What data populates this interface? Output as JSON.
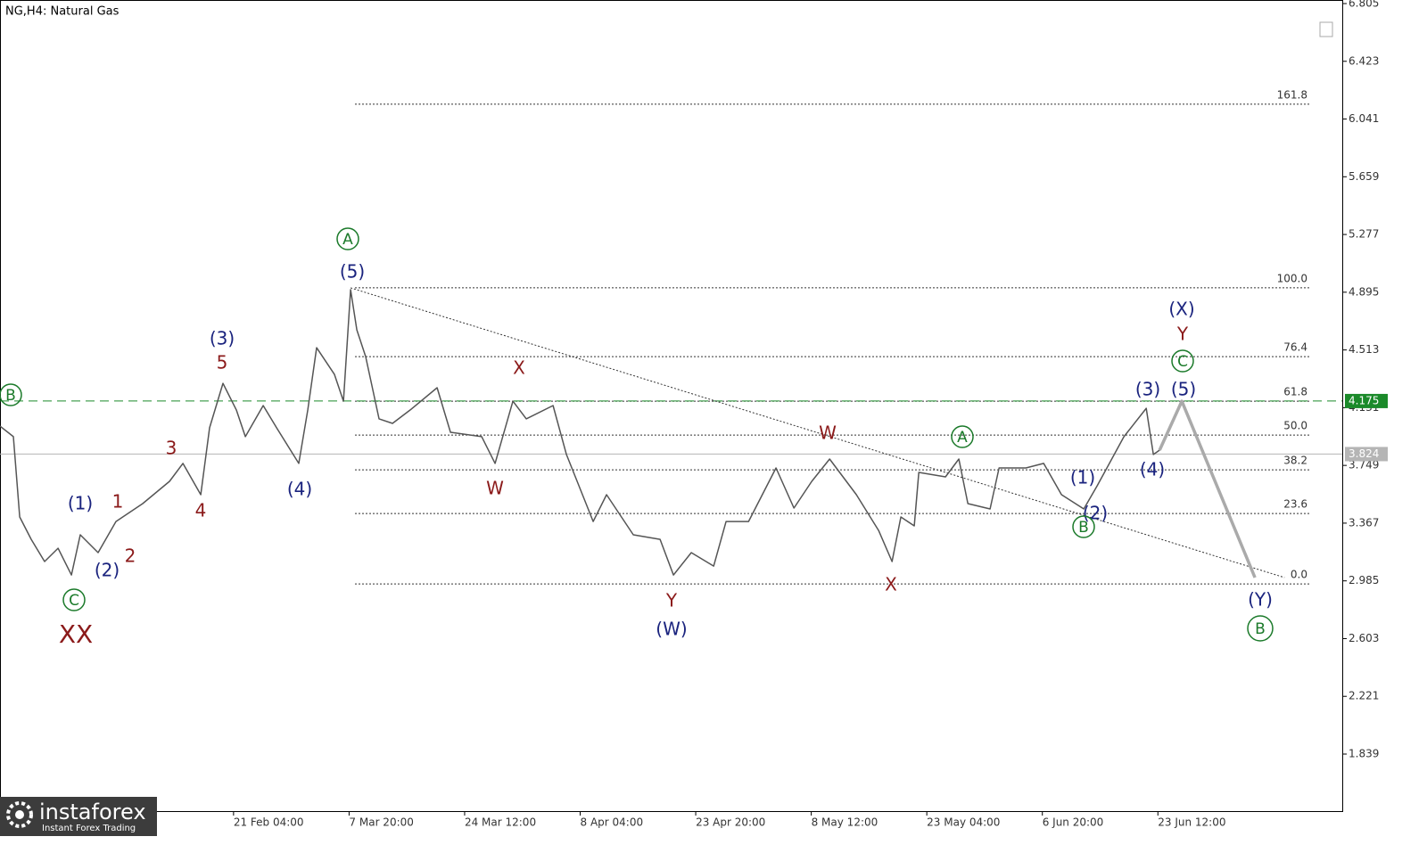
{
  "chart_data": {
    "type": "line",
    "title": "NG,H4:  Natural Gas",
    "xlim": [
      0,
      1092
    ],
    "ylim": [
      1.4615,
      6.8286
    ],
    "yticks": [
      6.805,
      6.423,
      6.041,
      5.659,
      5.277,
      4.895,
      4.513,
      4.131,
      3.749,
      3.367,
      2.985,
      2.603,
      2.221,
      1.839
    ],
    "xticks": [
      {
        "value": 190,
        "label": "21 Feb 04:00"
      },
      {
        "value": 284,
        "label": "7 Mar 20:00"
      },
      {
        "value": 378,
        "label": "24 Mar 12:00"
      },
      {
        "value": 472,
        "label": "8 Apr 04:00"
      },
      {
        "value": 566,
        "label": "23 Apr 20:00"
      },
      {
        "value": 660,
        "label": "8 May 12:00"
      },
      {
        "value": 754,
        "label": "23 May 04:00"
      },
      {
        "value": 848,
        "label": "6 Jun 20:00"
      },
      {
        "value": 942,
        "label": "23 Jun 12:00"
      }
    ],
    "series": [
      {
        "color": "#555555",
        "x": [
          0,
          10.9,
          16,
          25.4,
          36.3,
          47.2,
          58.1,
          65.3,
          79.8,
          94.3,
          116.1,
          137.9,
          148.8,
          163.3,
          170.5,
          181.4,
          192.3,
          199.6,
          214.1,
          225,
          243.1,
          250.4,
          257.6,
          272.1,
          279.4,
          285.2,
          290.3,
          297.5,
          308.4,
          319.3,
          333.8,
          355.6,
          366.5,
          391.9,
          402.8,
          417.3,
          428.2,
          449.9,
          460.8,
          482.6,
          493.5,
          515.2,
          537,
          547.9,
          562.4,
          580.6,
          590.7,
          609,
          631.3,
          645.9,
          660.4,
          674.9,
          696.7,
          714.8,
          725.7,
          732.9,
          743.8,
          747.5,
          769.2,
          780.1,
          787.4,
          805.5,
          812.8,
          834.6,
          849.1,
          863.6,
          881.7,
          892.6,
          914.4,
          932.5,
          938.3,
          943.4
        ],
        "values": [
          4.009,
          3.939,
          3.408,
          3.26,
          3.113,
          3.201,
          3.024,
          3.29,
          3.172,
          3.378,
          3.496,
          3.644,
          3.762,
          3.555,
          3.998,
          4.292,
          4.116,
          3.939,
          4.145,
          3.998,
          3.762,
          4.116,
          4.528,
          4.351,
          4.174,
          4.912,
          4.646,
          4.469,
          4.057,
          4.027,
          4.116,
          4.263,
          3.968,
          3.939,
          3.762,
          4.174,
          4.057,
          4.145,
          3.821,
          3.378,
          3.555,
          3.29,
          3.26,
          3.024,
          3.172,
          3.083,
          3.378,
          3.378,
          3.732,
          3.467,
          3.644,
          3.791,
          3.555,
          3.319,
          3.113,
          3.408,
          3.349,
          3.703,
          3.673,
          3.791,
          3.496,
          3.461,
          3.732,
          3.732,
          3.762,
          3.555,
          3.461,
          3.614,
          3.939,
          4.127,
          3.821,
          3.85
        ]
      }
    ],
    "projection": {
      "color": "#aaaaaa",
      "x": [
        943.4,
        961.5,
        1021
      ],
      "values": [
        3.85,
        4.174,
        3.007
      ]
    },
    "trendline": {
      "x": [
        285.2,
        1045
      ],
      "values": [
        4.924,
        3.007
      ]
    },
    "fib_levels": [
      {
        "label": "161.8",
        "price": 6.139
      },
      {
        "label": "100.0",
        "price": 4.924
      },
      {
        "label": "76.4",
        "price": 4.469
      },
      {
        "label": "61.8",
        "price": 4.174
      },
      {
        "label": "50.0",
        "price": 3.95
      },
      {
        "label": "38.2",
        "price": 3.72
      },
      {
        "label": "23.6",
        "price": 3.431
      },
      {
        "label": "0.0",
        "price": 2.965
      }
    ],
    "price_tags": [
      {
        "value": 4.175,
        "color": "#1b8a2a",
        "line": "dashed"
      },
      {
        "value": 3.824,
        "color": "#b5b5b5",
        "line": "solid"
      }
    ],
    "waves": [
      {
        "text": "B",
        "color": "#1b7a2a",
        "circled": true
      },
      {
        "text": "C",
        "color": "#1b7a2a",
        "circled": true
      },
      {
        "text": "XX",
        "color": "#8b1a1a",
        "circled": false
      },
      {
        "text": "(1)",
        "color": "#1a237e",
        "circled": false
      },
      {
        "text": "(2)",
        "color": "#1a237e",
        "circled": false
      },
      {
        "text": "1",
        "color": "#8b1a1a",
        "circled": false
      },
      {
        "text": "2",
        "color": "#8b1a1a",
        "circled": false
      },
      {
        "text": "3",
        "color": "#8b1a1a",
        "circled": false
      },
      {
        "text": "4",
        "color": "#8b1a1a",
        "circled": false
      },
      {
        "text": "5",
        "color": "#8b1a1a",
        "circled": false
      },
      {
        "text": "(3)",
        "color": "#1a237e",
        "circled": false
      },
      {
        "text": "(4)",
        "color": "#1a237e",
        "circled": false
      },
      {
        "text": "A",
        "color": "#1b7a2a",
        "circled": true
      },
      {
        "text": "(5)",
        "color": "#1a237e",
        "circled": false
      },
      {
        "text": "X",
        "color": "#8b1a1a",
        "circled": false
      },
      {
        "text": "W",
        "color": "#8b1a1a",
        "circled": false
      },
      {
        "text": "Y",
        "color": "#8b1a1a",
        "circled": false
      },
      {
        "text": "(W)",
        "color": "#1a237e",
        "circled": false
      },
      {
        "text": "W",
        "color": "#8b1a1a",
        "circled": false
      },
      {
        "text": "X",
        "color": "#8b1a1a",
        "circled": false
      },
      {
        "text": "A",
        "color": "#1b7a2a",
        "circled": true
      },
      {
        "text": "(1)",
        "color": "#1a237e",
        "circled": false
      },
      {
        "text": "(2)",
        "color": "#1a237e",
        "circled": false
      },
      {
        "text": "B",
        "color": "#1b7a2a",
        "circled": true
      },
      {
        "text": "(3)",
        "color": "#1a237e",
        "circled": false
      },
      {
        "text": "(5)",
        "color": "#1a237e",
        "circled": false
      },
      {
        "text": "(4)",
        "color": "#1a237e",
        "circled": false
      },
      {
        "text": "C",
        "color": "#1b7a2a",
        "circled": true
      },
      {
        "text": "Y",
        "color": "#8b1a1a",
        "circled": false
      },
      {
        "text": "(X)",
        "color": "#1a237e",
        "circled": false
      },
      {
        "text": "(Y)",
        "color": "#1a237e",
        "circled": false
      },
      {
        "text": "B",
        "color": "#1b7a2a",
        "circled": true
      }
    ]
  },
  "logo": {
    "name": "instaforex",
    "tagline": "Instant Forex Trading"
  }
}
